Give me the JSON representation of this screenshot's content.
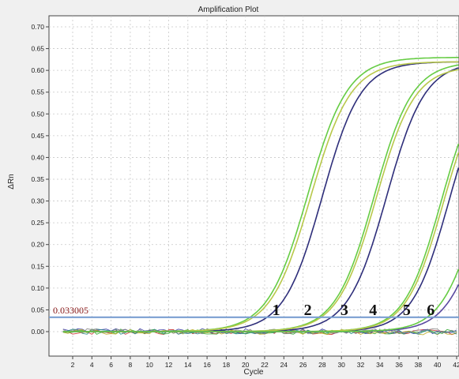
{
  "chart_data": {
    "type": "line",
    "title": "Amplification Plot",
    "xlabel": "Cycle",
    "ylabel": "ΔRn",
    "xlim": [
      0,
      42
    ],
    "ylim": [
      -0.02,
      0.7
    ],
    "x_ticks": [
      "2",
      "4",
      "6",
      "8",
      "10",
      "12",
      "14",
      "16",
      "18",
      "20",
      "22",
      "24",
      "26",
      "28",
      "30",
      "32",
      "34",
      "36",
      "38",
      "40",
      "42"
    ],
    "y_ticks": [
      "0.70",
      "0.65",
      "0.60",
      "0.55",
      "0.50",
      "0.45",
      "0.40",
      "0.35",
      "0.30",
      "0.25",
      "0.20",
      "0.15",
      "0.10",
      "0.05",
      "0.00"
    ],
    "grid": true,
    "threshold": {
      "value": 0.033,
      "label": "0.033005",
      "color": "#7b9fd1"
    },
    "run_labels": [
      {
        "text": "1",
        "x": 23.2
      },
      {
        "text": "2",
        "x": 26.5
      },
      {
        "text": "3",
        "x": 30.3
      },
      {
        "text": "4",
        "x": 33.3
      },
      {
        "text": "5",
        "x": 36.8
      },
      {
        "text": "6",
        "x": 39.3
      }
    ],
    "series": [
      {
        "color": "#2e2e7a",
        "ct": 24.8,
        "plateau": 0.62,
        "slope": 1.25
      },
      {
        "color": "#66cc44",
        "ct": 23.3,
        "plateau": 0.63,
        "slope": 1.3
      },
      {
        "color": "#b8c84a",
        "ct": 23.6,
        "plateau": 0.62,
        "slope": 1.3
      },
      {
        "color": "#2e2e7a",
        "ct": 31.5,
        "plateau": 0.62,
        "slope": 1.25
      },
      {
        "color": "#66cc44",
        "ct": 30.2,
        "plateau": 0.62,
        "slope": 1.25
      },
      {
        "color": "#b8c84a",
        "ct": 30.4,
        "plateau": 0.61,
        "slope": 1.25
      },
      {
        "color": "#2e2e7a",
        "ct": 38.0,
        "plateau": 0.6,
        "slope": 1.2
      },
      {
        "color": "#66cc44",
        "ct": 37.2,
        "plateau": 0.6,
        "slope": 1.2
      },
      {
        "color": "#b8c84a",
        "ct": 37.4,
        "plateau": 0.59,
        "slope": 1.2
      },
      {
        "color": "#5a4aa0",
        "ct": 41.7,
        "plateau": 0.55,
        "slope": 1.2
      },
      {
        "color": "#66cc44",
        "ct": 41.0,
        "plateau": 0.55,
        "slope": 1.2
      }
    ],
    "baseline_colors": [
      "#cc3333",
      "#33aa33",
      "#4444aa",
      "#bbaa22",
      "#228888",
      "#888888"
    ]
  }
}
